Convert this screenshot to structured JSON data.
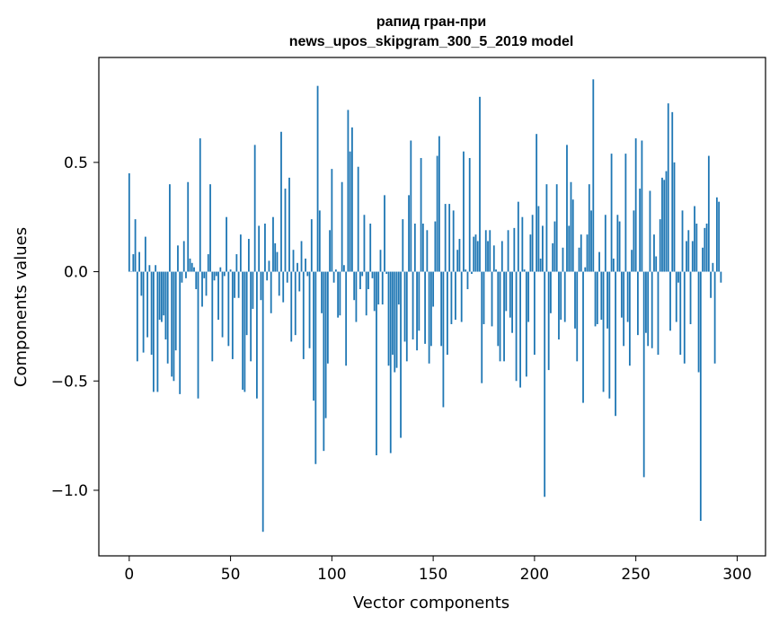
{
  "chart_data": {
    "type": "bar",
    "title_lines": [
      "рапид гран-при",
      "news_upos_skipgram_300_5_2019 model"
    ],
    "xlabel": "Vector components",
    "ylabel": "Components values",
    "xlim": [
      -15,
      314
    ],
    "ylim": [
      -1.3,
      0.98
    ],
    "xticks": [
      0,
      50,
      100,
      150,
      200,
      250,
      300
    ],
    "xtick_labels": [
      "0",
      "50",
      "100",
      "150",
      "200",
      "250",
      "300"
    ],
    "yticks": [
      -1.0,
      -0.5,
      0.0,
      0.5
    ],
    "ytick_labels": [
      "−1.0",
      "−0.5",
      "0.0",
      "0.5"
    ],
    "bar_color": "#1f77b4",
    "values": [
      0.45,
      0.0,
      0.08,
      0.24,
      -0.41,
      0.09,
      -0.11,
      -0.37,
      0.16,
      -0.3,
      0.03,
      -0.38,
      -0.55,
      0.03,
      -0.55,
      -0.22,
      -0.23,
      -0.2,
      -0.31,
      -0.42,
      0.4,
      -0.48,
      -0.5,
      -0.36,
      0.12,
      -0.56,
      -0.05,
      0.14,
      -0.03,
      0.41,
      0.06,
      0.04,
      0.02,
      -0.08,
      -0.58,
      0.61,
      -0.16,
      -0.03,
      -0.11,
      0.08,
      0.4,
      -0.41,
      -0.04,
      -0.02,
      -0.22,
      0.02,
      -0.3,
      -0.02,
      0.25,
      -0.34,
      0.01,
      -0.4,
      -0.12,
      0.08,
      -0.12,
      0.17,
      -0.54,
      -0.55,
      -0.29,
      0.15,
      -0.41,
      -0.17,
      0.58,
      -0.58,
      0.21,
      -0.13,
      -1.19,
      0.22,
      -0.04,
      0.05,
      -0.19,
      0.25,
      0.13,
      0.09,
      -0.11,
      0.64,
      -0.14,
      0.38,
      -0.05,
      0.43,
      -0.32,
      0.1,
      -0.29,
      0.04,
      -0.09,
      0.14,
      -0.4,
      0.06,
      -0.02,
      -0.35,
      0.24,
      -0.59,
      -0.88,
      0.85,
      0.28,
      -0.19,
      -0.82,
      -0.67,
      -0.42,
      0.19,
      0.47,
      -0.05,
      0.01,
      -0.21,
      -0.2,
      0.41,
      0.03,
      -0.43,
      0.74,
      0.55,
      0.66,
      -0.13,
      -0.23,
      0.48,
      -0.08,
      -0.02,
      0.26,
      -0.2,
      -0.08,
      0.22,
      -0.03,
      -0.18,
      -0.84,
      -0.15,
      0.1,
      -0.15,
      0.35,
      -0.01,
      -0.43,
      -0.83,
      -0.38,
      -0.46,
      -0.44,
      -0.15,
      -0.76,
      0.24,
      -0.32,
      -0.41,
      0.35,
      0.6,
      -0.31,
      0.22,
      -0.36,
      -0.27,
      0.52,
      0.22,
      -0.33,
      0.19,
      -0.42,
      -0.34,
      -0.16,
      0.23,
      0.53,
      0.62,
      -0.34,
      -0.62,
      0.31,
      -0.38,
      0.31,
      -0.24,
      0.28,
      -0.22,
      0.1,
      0.15,
      -0.23,
      0.55,
      0.01,
      -0.08,
      0.52,
      -0.01,
      0.16,
      0.17,
      0.14,
      0.8,
      -0.51,
      -0.24,
      0.19,
      0.14,
      0.19,
      -0.25,
      0.12,
      0.01,
      -0.34,
      -0.41,
      0.14,
      -0.41,
      -0.18,
      0.19,
      -0.21,
      -0.28,
      0.2,
      -0.5,
      0.32,
      -0.53,
      0.25,
      0.01,
      -0.48,
      -0.23,
      0.17,
      0.26,
      -0.38,
      0.63,
      0.3,
      0.06,
      0.21,
      -1.03,
      0.4,
      -0.45,
      -0.19,
      0.13,
      0.23,
      0.4,
      -0.31,
      -0.22,
      0.11,
      -0.23,
      0.58,
      0.21,
      0.41,
      0.33,
      -0.26,
      -0.41,
      0.11,
      0.17,
      -0.6,
      0.02,
      0.17,
      0.4,
      0.28,
      0.88,
      -0.25,
      -0.24,
      0.09,
      -0.22,
      -0.55,
      0.26,
      -0.26,
      -0.58,
      0.54,
      0.06,
      -0.66,
      0.26,
      0.23,
      -0.21,
      -0.34,
      0.54,
      -0.23,
      -0.43,
      0.1,
      0.28,
      0.61,
      -0.29,
      0.38,
      0.6,
      -0.94,
      -0.28,
      -0.34,
      0.37,
      -0.35,
      0.17,
      0.07,
      -0.38,
      0.24,
      0.43,
      0.42,
      0.46,
      0.77,
      -0.27,
      0.73,
      0.5,
      -0.23,
      -0.05,
      -0.38,
      0.28,
      -0.42,
      0.14,
      0.19,
      -0.24,
      0.14,
      0.3,
      0.22,
      -0.46,
      -1.14,
      0.11,
      0.2,
      0.22,
      0.53,
      -0.12,
      0.04,
      -0.42,
      0.34,
      0.32,
      -0.05
    ]
  }
}
